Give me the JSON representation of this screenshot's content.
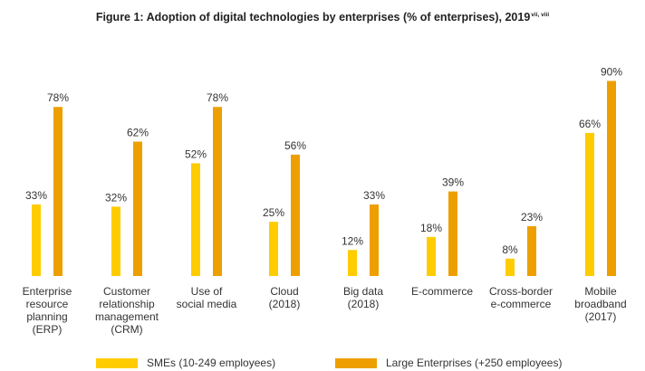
{
  "chart_data": {
    "type": "bar",
    "title": "Figure 1: Adoption of digital technologies by enterprises (% of enterprises), 2019",
    "title_superscript": "vii, viii",
    "categories": [
      [
        "Enterprise",
        "resource",
        "planning",
        "(ERP)"
      ],
      [
        "Customer",
        "relationship",
        "management",
        "(CRM)"
      ],
      [
        "Use of",
        "social media"
      ],
      [
        "Cloud",
        "(2018)"
      ],
      [
        "Big data",
        "(2018)"
      ],
      [
        "E-commerce"
      ],
      [
        "Cross-border",
        "e-commerce"
      ],
      [
        "Mobile",
        "broadband",
        "(2017)"
      ]
    ],
    "series": [
      {
        "name": "SMEs (10-249 employees)",
        "color": "#FFCC00",
        "values": [
          33,
          32,
          52,
          25,
          12,
          18,
          8,
          66
        ]
      },
      {
        "name": "Large Enterprises (+250 employees)",
        "color": "#EE9F00",
        "values": [
          78,
          62,
          78,
          56,
          33,
          39,
          23,
          90
        ]
      }
    ],
    "value_labels": [
      [
        "33%",
        "32%",
        "52%",
        "25%",
        "12%",
        "18%",
        "8%",
        "66%"
      ],
      [
        "78%",
        "62%",
        "78%",
        "56%",
        "33%",
        "39%",
        "23%",
        "90%"
      ]
    ],
    "ylim": [
      0,
      90
    ],
    "grid": false,
    "legend": "bottom"
  }
}
